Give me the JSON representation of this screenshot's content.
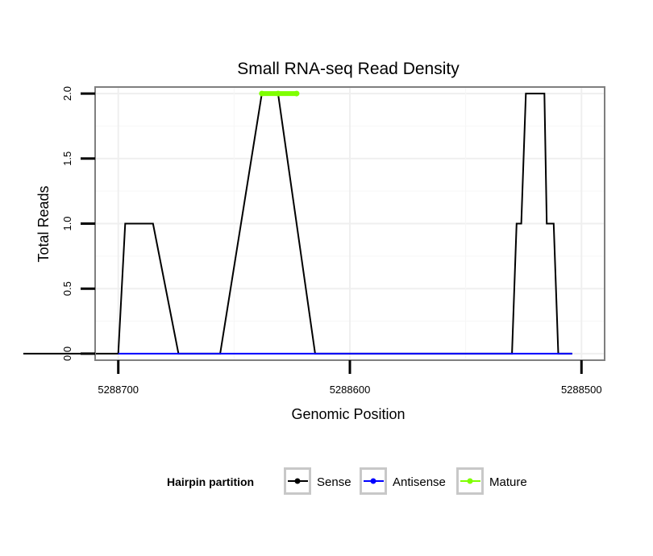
{
  "chart_data": {
    "type": "line",
    "title": "Small RNA-seq Read Density",
    "xlabel": "Genomic Position",
    "ylabel": "Total Reads",
    "x_reversed": true,
    "xlim": [
      5288710,
      5288490
    ],
    "ylim": [
      -0.05,
      2.05
    ],
    "x_ticks": [
      5288700,
      5288600,
      5288500
    ],
    "x_tick_labels": [
      "5288700",
      "5288600",
      "5288500"
    ],
    "y_ticks": [
      0,
      0.5,
      1,
      1.5,
      2
    ],
    "y_tick_labels": [
      "0.0",
      "0.5",
      "1.0",
      "1.5",
      "2.0"
    ],
    "grid": true,
    "legend_position": "bottom",
    "legend_title": "Hairpin partition",
    "series": [
      {
        "name": "Sense",
        "color": "#000000",
        "x": [
          5288741,
          5288700,
          5288697,
          5288685,
          5288674,
          5288656,
          5288638,
          5288631,
          5288615,
          5288530,
          5288528,
          5288526,
          5288524,
          5288516,
          5288515,
          5288512,
          5288510,
          5288504
        ],
        "y": [
          0,
          0,
          1,
          1,
          0,
          0,
          2,
          2,
          0,
          0,
          1,
          1,
          2,
          2,
          1,
          1,
          0,
          0
        ]
      },
      {
        "name": "Antisense",
        "color": "#0000ff",
        "x": [
          5288700,
          5288674,
          5288656,
          5288615,
          5288528,
          5288504
        ],
        "y": [
          0,
          0,
          0,
          0,
          0,
          0
        ]
      },
      {
        "name": "Mature",
        "color": "#7fff00",
        "x": [
          5288638,
          5288631,
          5288623
        ],
        "y": [
          2,
          2,
          2
        ]
      }
    ]
  }
}
